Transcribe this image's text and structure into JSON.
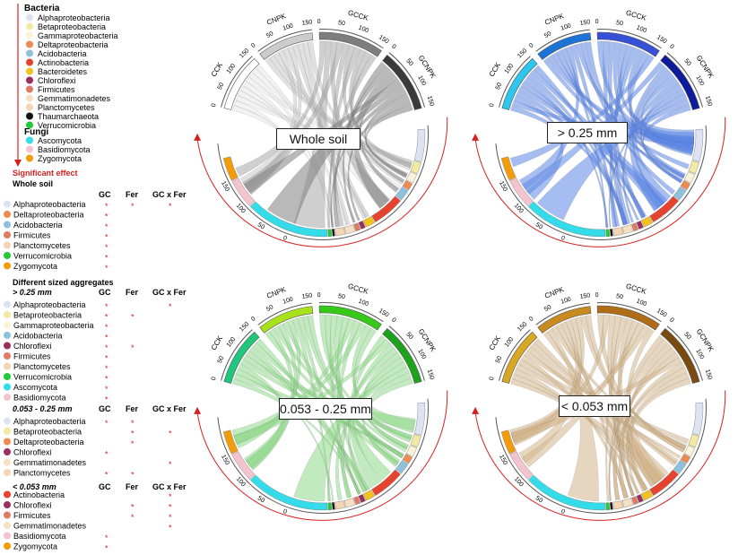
{
  "legend": {
    "bacteria_title": "Bacteria",
    "bacteria": [
      {
        "name": "Alphaproteobacteria",
        "color": "#dde3f3"
      },
      {
        "name": "Betaproteobacteria",
        "color": "#f2e9a2"
      },
      {
        "name": "Gammaproteobacteria",
        "color": "#fbf3d9"
      },
      {
        "name": "Deltaproteobacteria",
        "color": "#ee8a52"
      },
      {
        "name": "Acidobacteria",
        "color": "#8dc1dc"
      },
      {
        "name": "Actinobacteria",
        "color": "#e5432e"
      },
      {
        "name": "Bacteroidetes",
        "color": "#f2c31c"
      },
      {
        "name": "Chloroflexi",
        "color": "#9b2f5e"
      },
      {
        "name": "Firmicutes",
        "color": "#e07a65"
      },
      {
        "name": "Gemmatimonadetes",
        "color": "#f6e0c3"
      },
      {
        "name": "Planctomycetes",
        "color": "#f3d5b5"
      },
      {
        "name": "Thaumarchaeota",
        "color": "#111111"
      },
      {
        "name": "Verrucomicrobia",
        "color": "#24c93a"
      }
    ],
    "fungi_title": "Fungi",
    "fungi": [
      {
        "name": "Ascomycota",
        "color": "#34dce9"
      },
      {
        "name": "Basidiomycota",
        "color": "#f3c4cd"
      },
      {
        "name": "Zygomycota",
        "color": "#f29b0b"
      }
    ],
    "significant_effect": "Significant effect",
    "whole_soil_label": "Whole soil",
    "different_sized": "Different sized aggregates",
    "headers": {
      "gc": "GC",
      "fer": "Fer",
      "gcxfer": "GC x Fer"
    },
    "star": "*",
    "groups": [
      {
        "title": "",
        "rows": [
          {
            "name": "Alphaproteobacteria",
            "color": "#dde3f3",
            "gc": true,
            "fer": true,
            "gcxfer": true
          },
          {
            "name": "Deltaproteobacteria",
            "color": "#ee8a52",
            "gc": true,
            "fer": false,
            "gcxfer": false
          },
          {
            "name": "Acidobacteria",
            "color": "#8dc1dc",
            "gc": true,
            "fer": false,
            "gcxfer": false
          },
          {
            "name": "Firmicutes",
            "color": "#e07a65",
            "gc": true,
            "fer": false,
            "gcxfer": false
          },
          {
            "name": "Planctomycetes",
            "color": "#f3d5b5",
            "gc": true,
            "fer": false,
            "gcxfer": false
          },
          {
            "name": "Verrucomicrobia",
            "color": "#24c93a",
            "gc": true,
            "fer": false,
            "gcxfer": false
          },
          {
            "name": "Zygomycota",
            "color": "#f29b0b",
            "gc": true,
            "fer": false,
            "gcxfer": false
          }
        ]
      },
      {
        "title": "> 0.25 mm",
        "rows": [
          {
            "name": "Alphaproteobacteria",
            "color": "#dde3f3",
            "gc": true,
            "fer": false,
            "gcxfer": true
          },
          {
            "name": "Betaproteobacteria",
            "color": "#f2e9a2",
            "gc": true,
            "fer": true,
            "gcxfer": false
          },
          {
            "name": "Gammaproteobacteria",
            "color": "#fbf3d9",
            "gc": true,
            "fer": false,
            "gcxfer": false
          },
          {
            "name": "Acidobacteria",
            "color": "#8dc1dc",
            "gc": true,
            "fer": false,
            "gcxfer": false
          },
          {
            "name": "Chloroflexi",
            "color": "#9b2f5e",
            "gc": true,
            "fer": true,
            "gcxfer": false
          },
          {
            "name": "Firmicutes",
            "color": "#e07a65",
            "gc": true,
            "fer": false,
            "gcxfer": false
          },
          {
            "name": "Planctomycetes",
            "color": "#f3d5b5",
            "gc": true,
            "fer": false,
            "gcxfer": false
          },
          {
            "name": "Verrucomicrobia",
            "color": "#24c93a",
            "gc": true,
            "fer": false,
            "gcxfer": false
          },
          {
            "name": "Ascomycota",
            "color": "#34dce9",
            "gc": true,
            "fer": false,
            "gcxfer": false
          },
          {
            "name": "Basidiomycota",
            "color": "#f3c4cd",
            "gc": true,
            "fer": false,
            "gcxfer": false
          }
        ]
      },
      {
        "title": "0.053 - 0.25 mm",
        "rows": [
          {
            "name": "Alphaproteobacteria",
            "color": "#dde3f3",
            "gc": true,
            "fer": true,
            "gcxfer": false
          },
          {
            "name": "Betaproteobacteria",
            "color": "#f2e9a2",
            "gc": false,
            "fer": true,
            "gcxfer": true
          },
          {
            "name": "Deltaproteobacteria",
            "color": "#ee8a52",
            "gc": false,
            "fer": true,
            "gcxfer": false
          },
          {
            "name": "Chloroflexi",
            "color": "#9b2f5e",
            "gc": true,
            "fer": false,
            "gcxfer": false
          },
          {
            "name": "Gemmatimonadetes",
            "color": "#f6e0c3",
            "gc": false,
            "fer": false,
            "gcxfer": true
          },
          {
            "name": "Planctomycetes",
            "color": "#f3d5b5",
            "gc": true,
            "fer": true,
            "gcxfer": false
          }
        ]
      },
      {
        "title": "< 0.053 mm",
        "rows": [
          {
            "name": "Actinobacteria",
            "color": "#e5432e",
            "gc": false,
            "fer": false,
            "gcxfer": true
          },
          {
            "name": "Chloroflexi",
            "color": "#9b2f5e",
            "gc": false,
            "fer": true,
            "gcxfer": true
          },
          {
            "name": "Firmicutes",
            "color": "#e07a65",
            "gc": false,
            "fer": true,
            "gcxfer": true
          },
          {
            "name": "Gemmatimonadetes",
            "color": "#f6e0c3",
            "gc": false,
            "fer": false,
            "gcxfer": true
          },
          {
            "name": "Basidiomycota",
            "color": "#f3c4cd",
            "gc": true,
            "fer": false,
            "gcxfer": false
          },
          {
            "name": "Zygomycota",
            "color": "#f29b0b",
            "gc": true,
            "fer": false,
            "gcxfer": false
          }
        ]
      }
    ]
  },
  "diagrams": [
    {
      "label": "Whole soil",
      "treatments": [
        {
          "name": "CCK",
          "color": "#ffffff"
        },
        {
          "name": "CNPK",
          "color": "#cccccc"
        },
        {
          "name": "GCCK",
          "color": "#7d7d7d"
        },
        {
          "name": "GCNPK",
          "color": "#3a3a3a"
        }
      ],
      "ribbon": "#a0a0a0"
    },
    {
      "label": "> 0.25 mm",
      "treatments": [
        {
          "name": "CCK",
          "color": "#2ec6ef"
        },
        {
          "name": "CNPK",
          "color": "#1e74d6"
        },
        {
          "name": "GCCK",
          "color": "#3650d8"
        },
        {
          "name": "GCNPK",
          "color": "#0d1b9c"
        }
      ],
      "ribbon": "#5c86e6"
    },
    {
      "label": "0.053 - 0.25 mm",
      "treatments": [
        {
          "name": "CCK",
          "color": "#1fc77d"
        },
        {
          "name": "CNPK",
          "color": "#a9e21c"
        },
        {
          "name": "GCCK",
          "color": "#36c91a"
        },
        {
          "name": "GCNPK",
          "color": "#1ca31c"
        }
      ],
      "ribbon": "#8fd88a"
    },
    {
      "label": "< 0.053 mm",
      "treatments": [
        {
          "name": "CCK",
          "color": "#d9a823"
        },
        {
          "name": "CNPK",
          "color": "#c98a20"
        },
        {
          "name": "GCCK",
          "color": "#b06d18"
        },
        {
          "name": "GCNPK",
          "color": "#7a4a10"
        }
      ],
      "ribbon": "#d4b48a"
    }
  ],
  "tick_labels": {
    "treatment": [
      "0",
      "50",
      "100",
      "150"
    ],
    "taxa": [
      "0",
      "50",
      "100",
      "150"
    ]
  }
}
